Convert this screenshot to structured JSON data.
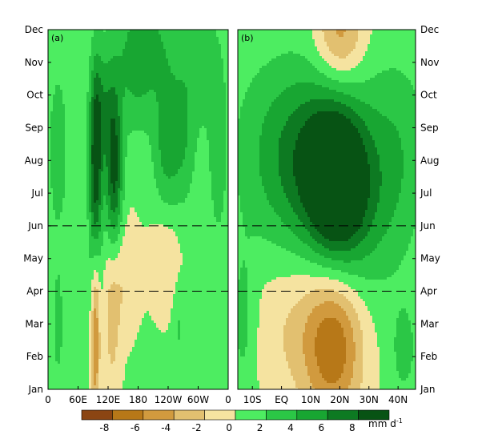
{
  "chart_data": [
    {
      "type": "heatmap",
      "panel_label": "(a)",
      "x_ticks": [
        "0",
        "60E",
        "120E",
        "180",
        "120W",
        "60W",
        "0"
      ],
      "y_ticks": [
        "Jan",
        "Feb",
        "Mar",
        "Apr",
        "May",
        "Jun",
        "Jul",
        "Aug",
        "Sep",
        "Oct",
        "Nov",
        "Dec"
      ],
      "xlim_deg_east": [
        0,
        360
      ],
      "ylim_month": [
        1,
        12
      ],
      "reference_lines_month": [
        4,
        6
      ],
      "reference_line_style": "dashed",
      "fields": [
        {
          "lon": 95,
          "month": 7.5,
          "amp": 9.0,
          "slon": 9,
          "smon": 2.2
        },
        {
          "lon": 132,
          "month": 7.6,
          "amp": 8.5,
          "slon": 12,
          "smon": 1.9
        },
        {
          "lon": 108,
          "month": 9.6,
          "amp": 4.0,
          "slon": 15,
          "smon": 1.3
        },
        {
          "lon": 20,
          "month": 8.3,
          "amp": 3.0,
          "slon": 14,
          "smon": 1.8
        },
        {
          "lon": 235,
          "month": 8.4,
          "amp": 4.0,
          "slon": 18,
          "smon": 1.6
        },
        {
          "lon": 270,
          "month": 8.5,
          "amp": 3.0,
          "slon": 18,
          "smon": 1.5
        },
        {
          "lon": 175,
          "month": 10.6,
          "amp": 3.0,
          "slon": 30,
          "smon": 1.4
        },
        {
          "lon": 200,
          "month": 11.7,
          "amp": 3.0,
          "slon": 40,
          "smon": 1.2
        },
        {
          "lon": 300,
          "month": 11.0,
          "amp": 2.5,
          "slon": 35,
          "smon": 1.5
        },
        {
          "lon": 340,
          "month": 8.0,
          "amp": 2.5,
          "slon": 15,
          "smon": 2.0
        },
        {
          "lon": 95,
          "month": 2.8,
          "amp": -6.5,
          "slon": 6,
          "smon": 2.0
        },
        {
          "lon": 128,
          "month": 3.2,
          "amp": -3.0,
          "slon": 12,
          "smon": 2.0
        },
        {
          "lon": 150,
          "month": 4.5,
          "amp": -2.5,
          "slon": 22,
          "smon": 1.3
        },
        {
          "lon": 235,
          "month": 5.0,
          "amp": -2.5,
          "slon": 22,
          "smon": 1.2
        },
        {
          "lon": 20,
          "month": 3.0,
          "amp": 2.5,
          "slon": 8,
          "smon": 1.3
        },
        {
          "lon": 260,
          "month": 3.0,
          "amp": 2.0,
          "slon": 8,
          "smon": 1.0
        }
      ]
    },
    {
      "type": "heatmap",
      "panel_label": "(b)",
      "x_ticks": [
        "10S",
        "EQ",
        "10N",
        "20N",
        "30N",
        "40N"
      ],
      "y_ticks": [
        "Jan",
        "Feb",
        "Mar",
        "Apr",
        "May",
        "Jun",
        "Jul",
        "Aug",
        "Sep",
        "Oct",
        "Nov",
        "Dec"
      ],
      "xlim_deg_lat": [
        -15,
        46
      ],
      "ylim_month": [
        1,
        12
      ],
      "reference_lines_month": [
        4,
        6
      ],
      "reference_line_style": "dashed",
      "fields": [
        {
          "lat": 19,
          "month": 7.3,
          "amp": 10.0,
          "slat": 7,
          "smon": 1.6
        },
        {
          "lat": 12,
          "month": 8.0,
          "amp": 5.0,
          "slat": 12,
          "smon": 2.0
        },
        {
          "lat": 0,
          "month": 8.5,
          "amp": 3.0,
          "slat": 12,
          "smon": 2.4
        },
        {
          "lat": 30,
          "month": 6.5,
          "amp": 2.5,
          "slat": 10,
          "smon": 2.0
        },
        {
          "lat": 40,
          "month": 8.5,
          "amp": 2.5,
          "slat": 8,
          "smon": 2.0
        },
        {
          "lat": 18,
          "month": 2.3,
          "amp": -7.5,
          "slat": 7,
          "smon": 1.6
        },
        {
          "lat": 4,
          "month": 3.0,
          "amp": -2.5,
          "slat": 10,
          "smon": 1.8
        },
        {
          "lat": 20,
          "month": 11.9,
          "amp": -5.5,
          "slat": 6,
          "smon": 1.2
        },
        {
          "lat": -13,
          "month": 3.0,
          "amp": 2.5,
          "slat": 3,
          "smon": 1.6
        },
        {
          "lat": 42,
          "month": 2.2,
          "amp": 2.5,
          "slat": 3,
          "smon": 1.0
        },
        {
          "lat": 2,
          "month": 11.0,
          "amp": -0.8,
          "slat": 10,
          "smon": 1.5
        }
      ]
    }
  ],
  "colorbar": {
    "tick_labels": [
      "-8",
      "-6",
      "-4",
      "-2",
      "0",
      "2",
      "4",
      "6",
      "8"
    ],
    "levels": [
      -10,
      -8,
      -6,
      -4,
      -2,
      0,
      2,
      4,
      6,
      8,
      10
    ],
    "colors": [
      "#8b4513",
      "#b77818",
      "#d19a3e",
      "#e2c070",
      "#f5e3a0",
      "#4ded61",
      "#2bc746",
      "#18a632",
      "#0d7a22",
      "#075314"
    ],
    "units": "mm d",
    "units_sup": "-1"
  }
}
